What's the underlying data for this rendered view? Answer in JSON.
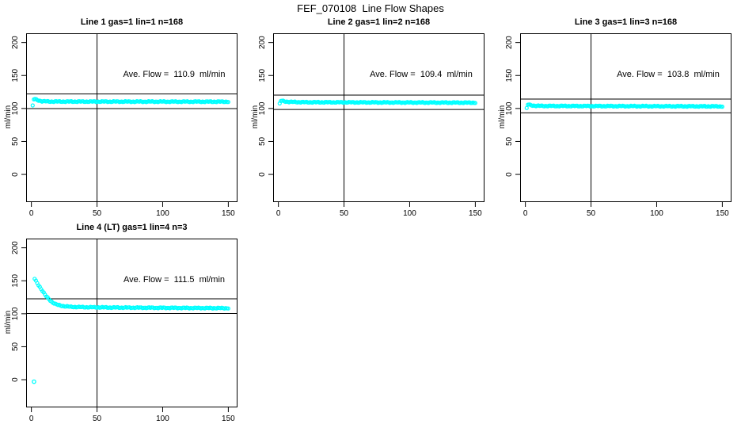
{
  "page_title": "FEF_070108  Line Flow Shapes",
  "chart_data": [
    {
      "type": "scatter",
      "title": "Line 1 gas=1 lin=1 n=168",
      "xlabel": "",
      "ylabel": "ml/min",
      "xlim": [
        -4,
        157
      ],
      "ylim": [
        -42,
        214
      ],
      "xticks": [
        0,
        50,
        100,
        150
      ],
      "yticks": [
        0,
        50,
        100,
        150,
        200
      ],
      "grid": false,
      "legend": "none",
      "marker": "open-circle",
      "marker_color": "#00ffff",
      "axis_color": "#000000",
      "n_points": 168,
      "ave_flow_ml_min": 110.9,
      "annotation": "Ave. Flow =  110.9  ml/min",
      "hlines": [
        99.8,
        122.0
      ],
      "vline_x": 50,
      "x_range": [
        1,
        150
      ],
      "trend_keypoints": [
        [
          1,
          104
        ],
        [
          2,
          115
        ],
        [
          3,
          114
        ],
        [
          5,
          112.5
        ],
        [
          8,
          111
        ],
        [
          15,
          110.5
        ],
        [
          150,
          110.3
        ]
      ],
      "outliers": []
    },
    {
      "type": "scatter",
      "title": "Line 2 gas=1 lin=2 n=168",
      "xlabel": "",
      "ylabel": "ml/min",
      "xlim": [
        -4,
        157
      ],
      "ylim": [
        -42,
        214
      ],
      "xticks": [
        0,
        50,
        100,
        150
      ],
      "yticks": [
        0,
        50,
        100,
        150,
        200
      ],
      "grid": false,
      "legend": "none",
      "marker": "open-circle",
      "marker_color": "#00ffff",
      "axis_color": "#000000",
      "n_points": 168,
      "ave_flow_ml_min": 109.4,
      "annotation": "Ave. Flow =  109.4  ml/min",
      "hlines": [
        98.5,
        120.3
      ],
      "vline_x": 50,
      "x_range": [
        1,
        150
      ],
      "trend_keypoints": [
        [
          1,
          107
        ],
        [
          2,
          112
        ],
        [
          4,
          111
        ],
        [
          8,
          110
        ],
        [
          20,
          109.5
        ],
        [
          150,
          108.8
        ]
      ],
      "outliers": []
    },
    {
      "type": "scatter",
      "title": "Line 3 gas=1 lin=3 n=168",
      "xlabel": "",
      "ylabel": "ml/min",
      "xlim": [
        -4,
        157
      ],
      "ylim": [
        -42,
        214
      ],
      "xticks": [
        0,
        50,
        100,
        150
      ],
      "yticks": [
        0,
        50,
        100,
        150,
        200
      ],
      "grid": false,
      "legend": "none",
      "marker": "open-circle",
      "marker_color": "#00ffff",
      "axis_color": "#000000",
      "n_points": 168,
      "ave_flow_ml_min": 103.8,
      "annotation": "Ave. Flow =  103.8  ml/min",
      "hlines": [
        93.4,
        114.2
      ],
      "vline_x": 50,
      "x_range": [
        1,
        150
      ],
      "trend_keypoints": [
        [
          1,
          100
        ],
        [
          2,
          106.5
        ],
        [
          4,
          105
        ],
        [
          8,
          104
        ],
        [
          20,
          103.8
        ],
        [
          150,
          103.2
        ]
      ],
      "outliers": []
    },
    {
      "type": "scatter",
      "title": "Line 4 (LT) gas=1 lin=4 n=3",
      "xlabel": "",
      "ylabel": "ml/min",
      "xlim": [
        -4,
        157
      ],
      "ylim": [
        -42,
        214
      ],
      "xticks": [
        0,
        50,
        100,
        150
      ],
      "yticks": [
        0,
        50,
        100,
        150,
        200
      ],
      "grid": false,
      "legend": "none",
      "marker": "open-circle",
      "marker_color": "#00ffff",
      "axis_color": "#000000",
      "n_points": 3,
      "ave_flow_ml_min": 111.5,
      "annotation": "Ave. Flow =  111.5  ml/min",
      "hlines": [
        100.4,
        122.7
      ],
      "vline_x": 50,
      "x_range": [
        2.5,
        150
      ],
      "trend_keypoints": [
        [
          2.5,
          153
        ],
        [
          3,
          151
        ],
        [
          4,
          148
        ],
        [
          5,
          145
        ],
        [
          6,
          142
        ],
        [
          7,
          139
        ],
        [
          8,
          136
        ],
        [
          9,
          133
        ],
        [
          10,
          130
        ],
        [
          11,
          127
        ],
        [
          12,
          125
        ],
        [
          13,
          123
        ],
        [
          14,
          121
        ],
        [
          15,
          119
        ],
        [
          16,
          117.5
        ],
        [
          18,
          115
        ],
        [
          20,
          113.5
        ],
        [
          22,
          112.5
        ],
        [
          25,
          111.5
        ],
        [
          30,
          110.5
        ],
        [
          40,
          110
        ],
        [
          60,
          109.5
        ],
        [
          100,
          109
        ],
        [
          150,
          108.5
        ]
      ],
      "outliers": [
        [
          2,
          -3
        ]
      ]
    }
  ]
}
